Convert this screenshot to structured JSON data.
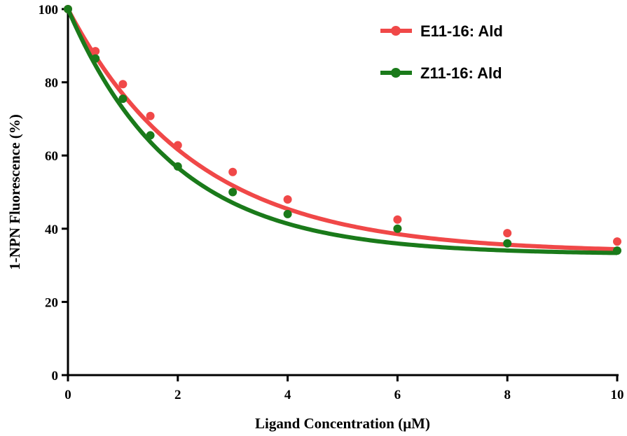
{
  "chart_data": {
    "type": "line",
    "title": "",
    "xlabel": "Ligand Concentration (μM)",
    "ylabel": "1-NPN Fluorescence (%)",
    "xlim": [
      0,
      10
    ],
    "ylim": [
      0,
      100
    ],
    "xticks": [
      0,
      2,
      4,
      6,
      8,
      10
    ],
    "yticks": [
      0,
      20,
      40,
      60,
      80,
      100
    ],
    "xtick_labels": [
      "0",
      "2",
      "4",
      "6",
      "8",
      "10"
    ],
    "ytick_labels": [
      "0",
      "20",
      "40",
      "60",
      "80",
      "100"
    ],
    "legend_position": "top-right",
    "series": [
      {
        "name": "E11-16: Ald",
        "color": "#f04848",
        "x": [
          0,
          0.5,
          1,
          1.5,
          2,
          3,
          4,
          6,
          8,
          10
        ],
        "y": [
          100,
          88.5,
          79.5,
          70.8,
          62.8,
          55.5,
          48.0,
          42.5,
          38.8,
          36.5
        ],
        "fit": {
          "model": "one-phase-decay",
          "y0": 100,
          "plateau": 33.5,
          "k": 0.43
        }
      },
      {
        "name": "Z11-16: Ald",
        "color": "#1a7a1a",
        "x": [
          0,
          0.5,
          1,
          1.5,
          2,
          3,
          4,
          6,
          8,
          10
        ],
        "y": [
          100,
          86.5,
          75.5,
          65.5,
          57.0,
          50.0,
          44.0,
          40.0,
          36.0,
          34.0
        ],
        "fit": {
          "model": "one-phase-decay",
          "y0": 100,
          "plateau": 33.0,
          "k": 0.52
        }
      }
    ]
  }
}
